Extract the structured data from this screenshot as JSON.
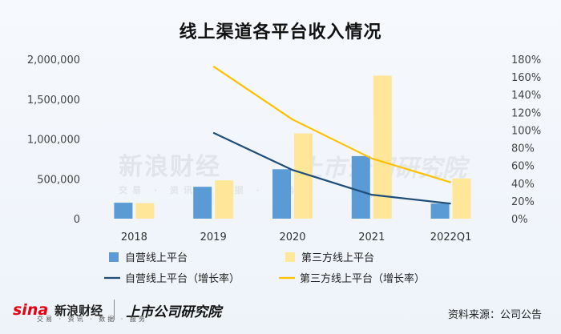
{
  "title": "线上渠道各平台收入情况",
  "watermark": {
    "sina_text": "新浪财经",
    "sina_sub": "交易 · 资讯 · 数据 · 服务",
    "brand": "上市公司研究院"
  },
  "footer": {
    "sina_logo": "sina",
    "sina_text": "新浪财经",
    "sina_sub": "交易 · 资讯 · 数据 · 服务",
    "brand": "上市公司研究院",
    "source": "资料来源：公司公告"
  },
  "chart_data": {
    "type": "bar",
    "title": "线上渠道各平台收入情况",
    "categories": [
      "2018",
      "2019",
      "2020",
      "2021",
      "2022Q1"
    ],
    "y_left": {
      "ticks": [
        "0",
        "500,000",
        "1,000,000",
        "1,500,000",
        "2,000,000"
      ],
      "ylim": [
        0,
        2000000
      ]
    },
    "y_right": {
      "ticks": [
        "0%",
        "20%",
        "40%",
        "60%",
        "80%",
        "100%",
        "120%",
        "140%",
        "160%",
        "180%"
      ],
      "ylim": [
        0,
        1.8
      ]
    },
    "bar_series": [
      {
        "name": "自营线上平台",
        "color": "#5b9bd5",
        "values": [
          200000,
          400000,
          620000,
          785000,
          190000
        ]
      },
      {
        "name": "第三方线上平台",
        "color": "#ffe699",
        "values": [
          195000,
          480000,
          1070000,
          1795000,
          505000
        ]
      }
    ],
    "line_series": [
      {
        "name": "自营线上平台（增长率）",
        "color": "#1f4e79",
        "values": [
          null,
          0.97,
          0.55,
          0.27,
          0.17
        ]
      },
      {
        "name": "第三方线上平台（增长率）",
        "color": "#ffc000",
        "values": [
          null,
          1.72,
          1.12,
          0.68,
          0.41
        ]
      }
    ],
    "legend_position": "bottom",
    "grid": false
  }
}
